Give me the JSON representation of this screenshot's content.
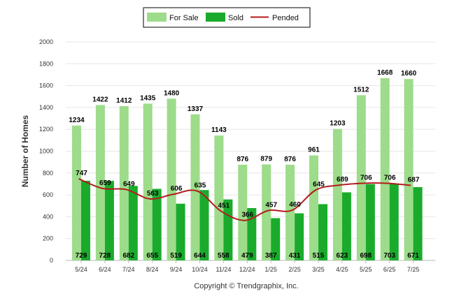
{
  "chart_data": {
    "type": "bar",
    "ylabel": "Number of Homes",
    "ylim": [
      0,
      2000
    ],
    "ytick_step": 200,
    "grid": true,
    "legend_position": "top-center",
    "categories": [
      "5/24",
      "6/24",
      "7/24",
      "8/24",
      "9/24",
      "10/24",
      "11/24",
      "12/24",
      "1/25",
      "2/25",
      "3/25",
      "4/25",
      "5/25",
      "6/25",
      "7/25"
    ],
    "series": [
      {
        "name": "For Sale",
        "kind": "bar",
        "color": "#9ddc8a",
        "values": [
          1234,
          1422,
          1412,
          1435,
          1480,
          1337,
          1143,
          876,
          879,
          876,
          961,
          1203,
          1512,
          1668,
          1660
        ]
      },
      {
        "name": "Sold",
        "kind": "bar",
        "color": "#1aab2c",
        "values": [
          729,
          728,
          682,
          655,
          519,
          644,
          558,
          479,
          387,
          431,
          515,
          623,
          698,
          703,
          671
        ]
      },
      {
        "name": "Pended",
        "kind": "line",
        "color": "#b31b1b",
        "values": [
          747,
          659,
          649,
          563,
          606,
          635,
          451,
          366,
          457,
          460,
          645,
          689,
          706,
          706,
          687
        ]
      }
    ],
    "footer": "Copyright © Trendgraphix, Inc."
  }
}
